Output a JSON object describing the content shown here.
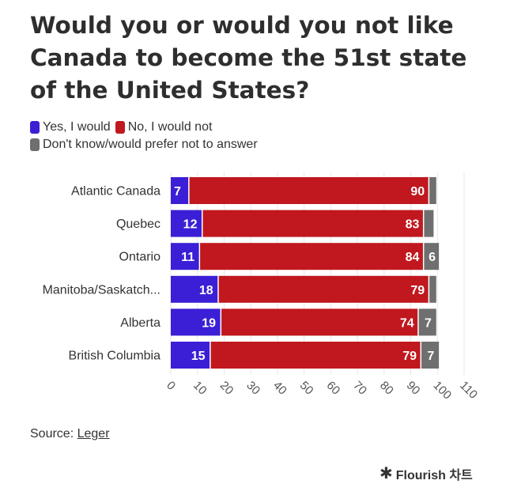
{
  "title": "Would you or would you not like Canada to become the 51st state of the United States?",
  "legend": [
    {
      "label": "Yes, I would",
      "color": "#3a1fd6"
    },
    {
      "label": "No, I would not",
      "color": "#c0181e"
    },
    {
      "label": "Don't know/would prefer not to answer",
      "color": "#6f6f6f"
    }
  ],
  "chart_data": {
    "type": "bar",
    "orientation": "horizontal",
    "stacked": true,
    "title": "Would you or would you not like Canada to become the 51st state of the United States?",
    "categories": [
      "Atlantic Canada",
      "Quebec",
      "Ontario",
      "Manitoba/Saskatch...",
      "Alberta",
      "British Columbia"
    ],
    "series": [
      {
        "name": "Yes, I would",
        "color": "#3a1fd6",
        "values": [
          7,
          12,
          11,
          18,
          19,
          15
        ],
        "labels": [
          "7",
          "12",
          "11",
          "18",
          "19",
          "15"
        ]
      },
      {
        "name": "No, I would not",
        "color": "#c0181e",
        "values": [
          90,
          83,
          84,
          79,
          74,
          79
        ],
        "labels": [
          "90",
          "83",
          "84",
          "79",
          "74",
          "79"
        ]
      },
      {
        "name": "Don't know/would prefer not to answer",
        "color": "#6f6f6f",
        "values": [
          3,
          4,
          6,
          3,
          7,
          7
        ],
        "labels": [
          "",
          "",
          "6",
          "",
          "7",
          "7"
        ]
      }
    ],
    "xlim": [
      0,
      110
    ],
    "xticks": [
      "0",
      "10",
      "20",
      "30",
      "40",
      "50",
      "60",
      "70",
      "80",
      "90",
      "100",
      "110"
    ],
    "grid": true,
    "legend_position": "top-left"
  },
  "source": {
    "prefix": "Source:",
    "link_text": "Leger"
  },
  "brand": {
    "icon": "✱",
    "text": "Flourish 차트"
  }
}
